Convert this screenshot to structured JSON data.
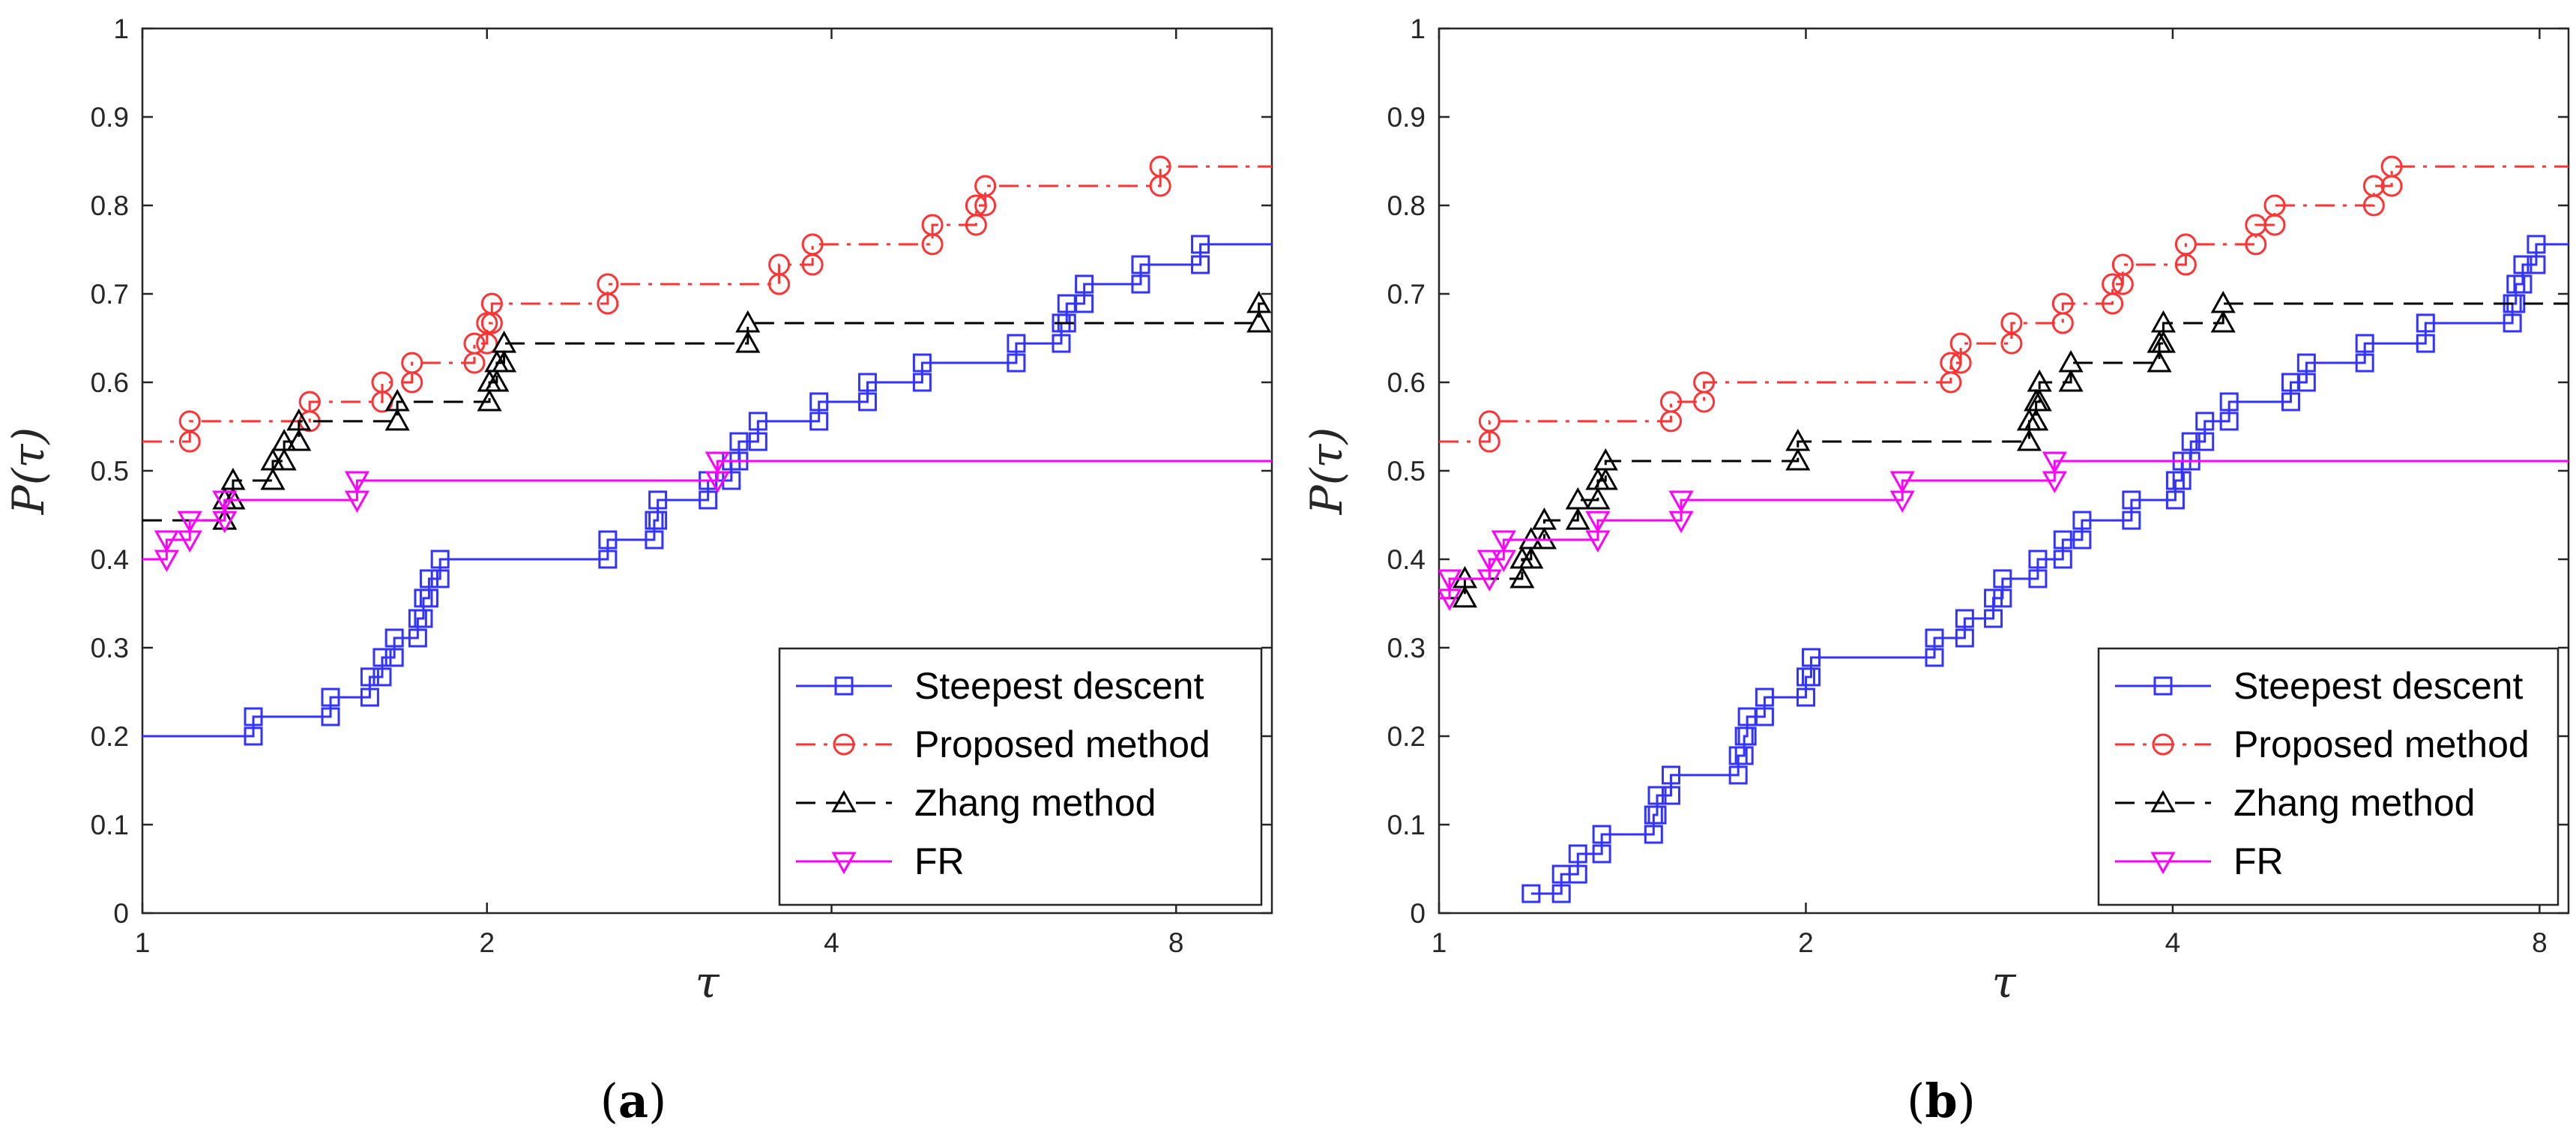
{
  "figure": {
    "panels": [
      {
        "caption_open": "(",
        "caption_letter": "a",
        "caption_close": ")"
      },
      {
        "caption_open": "(",
        "caption_letter": "b",
        "caption_close": ")"
      }
    ]
  },
  "colors": {
    "steepest_descent": "#3333ff",
    "proposed_method": "#ff3333",
    "zhang_method": "#000000",
    "fr": "#ff00ff"
  },
  "chart_data": [
    {
      "type": "line",
      "panel": "a",
      "xlabel": "τ",
      "ylabel_prefix": "P(",
      "ylabel_sym": "τ",
      "ylabel_suffix": ")",
      "x_scale": "log2",
      "xlim": [
        1,
        9.7
      ],
      "ylim": [
        0,
        1
      ],
      "xticks": [
        1,
        2,
        4,
        8
      ],
      "xtick_labels": [
        "1",
        "2",
        "4",
        "8"
      ],
      "yticks": [
        0,
        0.1,
        0.2,
        0.3,
        0.4,
        0.5,
        0.6,
        0.7,
        0.8,
        0.9,
        1
      ],
      "ytick_labels": [
        "0",
        "0.1",
        "0.2",
        "0.3",
        "0.4",
        "0.5",
        "0.6",
        "0.7",
        "0.8",
        "0.9",
        "1"
      ],
      "legend_position": "bottom-right",
      "series": [
        {
          "name": "Steepest descent",
          "key": "steepest_descent",
          "style": "solid",
          "marker": "square",
          "y0": 0.2,
          "steps": [
            [
              1.25,
              0.222
            ],
            [
              1.46,
              0.244
            ],
            [
              1.58,
              0.267
            ],
            [
              1.62,
              0.289
            ],
            [
              1.66,
              0.311
            ],
            [
              1.74,
              0.333
            ],
            [
              1.76,
              0.356
            ],
            [
              1.78,
              0.378
            ],
            [
              1.82,
              0.4
            ],
            [
              2.55,
              0.422
            ],
            [
              2.8,
              0.444
            ],
            [
              2.82,
              0.467
            ],
            [
              3.12,
              0.489
            ],
            [
              3.27,
              0.511
            ],
            [
              3.32,
              0.533
            ],
            [
              3.45,
              0.556
            ],
            [
              3.9,
              0.578
            ],
            [
              4.3,
              0.6
            ],
            [
              4.8,
              0.622
            ],
            [
              5.8,
              0.644
            ],
            [
              6.35,
              0.667
            ],
            [
              6.42,
              0.689
            ],
            [
              6.65,
              0.711
            ],
            [
              7.45,
              0.733
            ],
            [
              8.4,
              0.756
            ]
          ]
        },
        {
          "name": "Proposed method",
          "key": "proposed_method",
          "style": "dashdot",
          "marker": "circle",
          "y0": 0.533,
          "steps": [
            [
              1.1,
              0.556
            ],
            [
              1.4,
              0.578
            ],
            [
              1.62,
              0.6
            ],
            [
              1.72,
              0.622
            ],
            [
              1.95,
              0.644
            ],
            [
              2.0,
              0.667
            ],
            [
              2.02,
              0.689
            ],
            [
              2.55,
              0.711
            ],
            [
              3.6,
              0.733
            ],
            [
              3.85,
              0.756
            ],
            [
              4.9,
              0.778
            ],
            [
              5.35,
              0.8
            ],
            [
              5.45,
              0.822
            ],
            [
              7.75,
              0.844
            ]
          ]
        },
        {
          "name": "Zhang method",
          "key": "zhang_method",
          "style": "dashed",
          "marker": "triangle-up",
          "y0": 0.444,
          "steps": [
            [
              1.18,
              0.467
            ],
            [
              1.2,
              0.489
            ],
            [
              1.3,
              0.511
            ],
            [
              1.33,
              0.533
            ],
            [
              1.37,
              0.556
            ],
            [
              1.67,
              0.578
            ],
            [
              2.01,
              0.6
            ],
            [
              2.04,
              0.622
            ],
            [
              2.07,
              0.644
            ],
            [
              3.38,
              0.667
            ],
            [
              9.45,
              0.689
            ]
          ]
        },
        {
          "name": "FR",
          "key": "fr",
          "style": "solid",
          "marker": "triangle-down",
          "y0": 0.4,
          "steps": [
            [
              1.05,
              0.422
            ],
            [
              1.1,
              0.444
            ],
            [
              1.18,
              0.467
            ],
            [
              1.54,
              0.489
            ],
            [
              3.18,
              0.511
            ]
          ]
        }
      ]
    },
    {
      "type": "line",
      "panel": "b",
      "xlabel": "τ",
      "ylabel_prefix": "P(",
      "ylabel_sym": "τ",
      "ylabel_suffix": ")",
      "x_scale": "log2",
      "xlim": [
        1,
        8.45
      ],
      "ylim": [
        0,
        1
      ],
      "xticks": [
        1,
        2,
        4,
        8
      ],
      "xtick_labels": [
        "1",
        "2",
        "4",
        "8"
      ],
      "yticks": [
        0,
        0.1,
        0.2,
        0.3,
        0.4,
        0.5,
        0.6,
        0.7,
        0.8,
        0.9,
        1
      ],
      "ytick_labels": [
        "0",
        "0.1",
        "0.2",
        "0.3",
        "0.4",
        "0.5",
        "0.6",
        "0.7",
        "0.8",
        "0.9",
        "1"
      ],
      "legend_position": "bottom-right",
      "series": [
        {
          "name": "Steepest descent",
          "key": "steepest_descent",
          "style": "solid",
          "marker": "square",
          "start_x": 1.19,
          "y0": 0.022,
          "steps": [
            [
              1.26,
              0.044
            ],
            [
              1.3,
              0.067
            ],
            [
              1.36,
              0.089
            ],
            [
              1.5,
              0.111
            ],
            [
              1.51,
              0.133
            ],
            [
              1.55,
              0.156
            ],
            [
              1.76,
              0.178
            ],
            [
              1.78,
              0.2
            ],
            [
              1.79,
              0.222
            ],
            [
              1.85,
              0.244
            ],
            [
              2.0,
              0.267
            ],
            [
              2.02,
              0.289
            ],
            [
              2.55,
              0.311
            ],
            [
              2.7,
              0.333
            ],
            [
              2.85,
              0.356
            ],
            [
              2.9,
              0.378
            ],
            [
              3.1,
              0.4
            ],
            [
              3.25,
              0.422
            ],
            [
              3.37,
              0.444
            ],
            [
              3.7,
              0.467
            ],
            [
              4.02,
              0.489
            ],
            [
              4.07,
              0.511
            ],
            [
              4.14,
              0.533
            ],
            [
              4.25,
              0.556
            ],
            [
              4.45,
              0.578
            ],
            [
              5.0,
              0.6
            ],
            [
              5.15,
              0.622
            ],
            [
              5.75,
              0.644
            ],
            [
              6.45,
              0.667
            ],
            [
              7.6,
              0.689
            ],
            [
              7.65,
              0.711
            ],
            [
              7.75,
              0.733
            ],
            [
              7.95,
              0.756
            ]
          ]
        },
        {
          "name": "Proposed method",
          "key": "proposed_method",
          "style": "dashdot",
          "marker": "circle",
          "y0": 0.533,
          "steps": [
            [
              1.1,
              0.556
            ],
            [
              1.55,
              0.578
            ],
            [
              1.65,
              0.6
            ],
            [
              2.63,
              0.622
            ],
            [
              2.68,
              0.644
            ],
            [
              2.95,
              0.667
            ],
            [
              3.25,
              0.689
            ],
            [
              3.57,
              0.711
            ],
            [
              3.64,
              0.733
            ],
            [
              4.1,
              0.756
            ],
            [
              4.68,
              0.778
            ],
            [
              4.85,
              0.8
            ],
            [
              5.85,
              0.822
            ],
            [
              6.05,
              0.844
            ]
          ]
        },
        {
          "name": "Zhang method",
          "key": "zhang_method",
          "style": "dashed",
          "marker": "triangle-up",
          "y0": 0.356,
          "steps": [
            [
              1.05,
              0.378
            ],
            [
              1.17,
              0.4
            ],
            [
              1.19,
              0.422
            ],
            [
              1.22,
              0.444
            ],
            [
              1.3,
              0.467
            ],
            [
              1.35,
              0.489
            ],
            [
              1.37,
              0.511
            ],
            [
              1.97,
              0.533
            ],
            [
              3.05,
              0.556
            ],
            [
              3.09,
              0.578
            ],
            [
              3.11,
              0.6
            ],
            [
              3.3,
              0.622
            ],
            [
              3.9,
              0.644
            ],
            [
              3.93,
              0.667
            ],
            [
              4.4,
              0.689
            ]
          ]
        },
        {
          "name": "FR",
          "key": "fr",
          "style": "solid",
          "marker": "triangle-down",
          "y0": 0.356,
          "steps": [
            [
              1.02,
              0.378
            ],
            [
              1.1,
              0.4
            ],
            [
              1.13,
              0.422
            ],
            [
              1.35,
              0.444
            ],
            [
              1.58,
              0.467
            ],
            [
              2.4,
              0.489
            ],
            [
              3.2,
              0.511
            ]
          ]
        }
      ]
    }
  ]
}
